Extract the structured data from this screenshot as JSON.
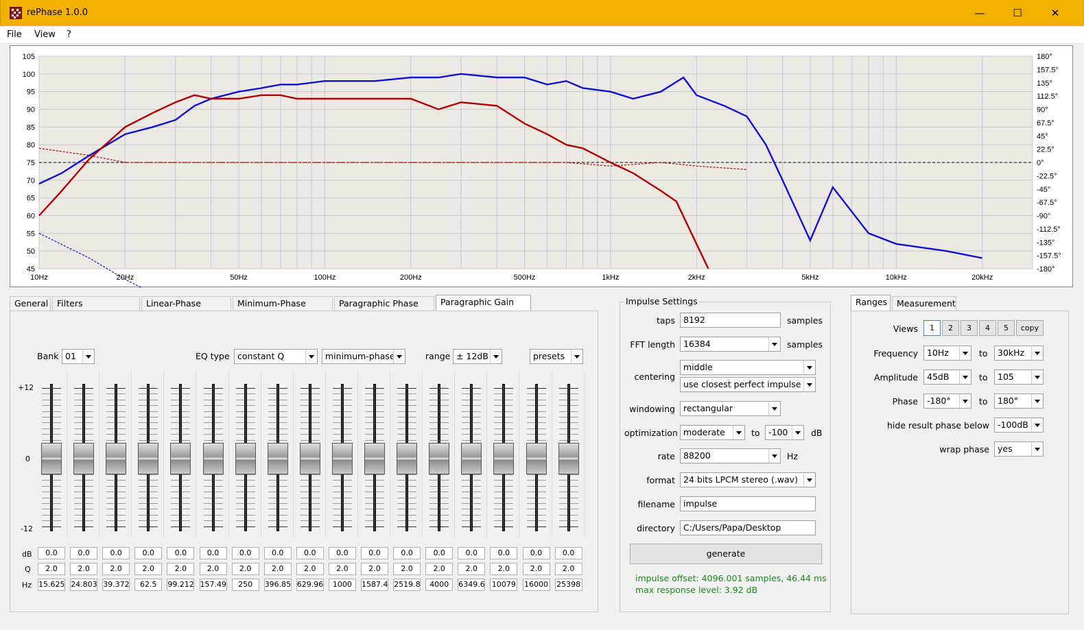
{
  "window": {
    "title": "rePhase 1.0.0",
    "minimize": "—",
    "maximize": "☐",
    "close": "✕"
  },
  "menu": [
    "File",
    "View",
    "?"
  ],
  "graph": {
    "left_axis_ticks": [
      "105",
      "100",
      "95",
      "90",
      "85",
      "80",
      "75",
      "70",
      "65",
      "60",
      "55",
      "50",
      "45"
    ],
    "right_axis_ticks": [
      "180°",
      "157.5°",
      "135°",
      "112.5°",
      "90°",
      "67.5°",
      "45°",
      "22.5°",
      "0°",
      "-22.5°",
      "-45°",
      "-67.5°",
      "-90°",
      "-112.5°",
      "-135°",
      "-157.5°",
      "-180°"
    ],
    "freq_ticks": [
      {
        "label": "10Hz",
        "f": 10
      },
      {
        "label": "20Hz",
        "f": 20
      },
      {
        "label": "50Hz",
        "f": 50
      },
      {
        "label": "100Hz",
        "f": 100
      },
      {
        "label": "200Hz",
        "f": 200
      },
      {
        "label": "500Hz",
        "f": 500
      },
      {
        "label": "1kHz",
        "f": 1000
      },
      {
        "label": "2kHz",
        "f": 2000
      },
      {
        "label": "5kHz",
        "f": 5000
      },
      {
        "label": "10kHz",
        "f": 10000
      },
      {
        "label": "20kHz",
        "f": 20000
      }
    ],
    "colors": {
      "blue": "#1010d0",
      "red": "#b00000",
      "grid": "#c8c8c8",
      "background": "#ece9e4"
    }
  },
  "chart_data": {
    "type": "line",
    "x_scale": "log",
    "xlim": [
      10,
      30000
    ],
    "ylim": [
      45,
      105
    ],
    "y2lim": [
      -180,
      180
    ],
    "grid": true,
    "series": [
      {
        "color": "#1010d0",
        "style": "solid",
        "x": [
          10,
          12,
          15,
          20,
          25,
          30,
          35,
          40,
          50,
          60,
          70,
          80,
          100,
          120,
          150,
          200,
          250,
          300,
          400,
          500,
          600,
          700,
          800,
          1000,
          1200,
          1500,
          1800,
          2000,
          2500,
          3000,
          3500,
          4000,
          5000,
          6000,
          8000,
          10000,
          15000,
          20000
        ],
        "y": [
          69,
          72,
          77,
          83,
          85,
          87,
          91,
          93,
          95,
          96,
          97,
          97,
          98,
          98,
          98,
          99,
          99,
          100,
          99,
          99,
          97,
          98,
          96,
          95,
          93,
          95,
          99,
          94,
          91,
          88,
          80,
          70,
          53,
          68,
          55,
          52,
          50,
          48
        ]
      },
      {
        "color": "#b00000",
        "style": "solid",
        "x": [
          10,
          12,
          15,
          20,
          25,
          30,
          35,
          40,
          50,
          60,
          70,
          80,
          100,
          120,
          150,
          200,
          250,
          300,
          400,
          500,
          600,
          700,
          800,
          1000,
          1200,
          1500,
          1700,
          2000,
          2200
        ],
        "y": [
          60,
          67,
          76,
          85,
          89,
          92,
          94,
          93,
          93,
          94,
          94,
          93,
          93,
          93,
          93,
          93,
          90,
          92,
          91,
          86,
          83,
          80,
          79,
          75,
          72,
          67,
          64,
          52,
          45
        ]
      },
      {
        "color": "#1010d0",
        "style": "dotted",
        "x": [
          10,
          15,
          20,
          25,
          30,
          35,
          40,
          50,
          70,
          100,
          150,
          200,
          300,
          400,
          500,
          600,
          800,
          1000,
          1500,
          2000,
          3000,
          4000
        ],
        "y": [
          55,
          48,
          42,
          38,
          35,
          33,
          32,
          31,
          30,
          29,
          28,
          28,
          27,
          25,
          24,
          24,
          23,
          22,
          20,
          18,
          16,
          10
        ]
      },
      {
        "color": "#b00000",
        "style": "dotted",
        "x": [
          10,
          15,
          20,
          30,
          50,
          100,
          150,
          200,
          300,
          500,
          700,
          1000,
          1500,
          2000,
          3000
        ],
        "y": [
          79,
          77,
          75,
          75,
          75,
          75,
          75,
          75,
          75,
          75,
          75,
          74,
          75,
          74,
          73
        ]
      }
    ]
  },
  "tabs": [
    "General",
    "Filters Linearization",
    "Linear-Phase Filters",
    "Minimum-Phase Filters",
    "Paragraphic Phase EQ",
    "Paragraphic Gain EQ"
  ],
  "eq": {
    "bank_label": "Bank",
    "bank": "01",
    "eq_type_label": "EQ type",
    "eq_type": "constant Q",
    "phase_type": "minimum-phase",
    "range_label": "range",
    "range": "± 12dB",
    "presets": "presets",
    "scale_top": "+12",
    "scale_mid": "0",
    "scale_bottom": "-12",
    "row_labels": [
      "dB",
      "Q",
      "Hz"
    ],
    "bands": [
      {
        "db": "0.0",
        "q": "2.0",
        "hz": "15.625"
      },
      {
        "db": "0.0",
        "q": "2.0",
        "hz": "24.803"
      },
      {
        "db": "0.0",
        "q": "2.0",
        "hz": "39.372"
      },
      {
        "db": "0.0",
        "q": "2.0",
        "hz": "62.5"
      },
      {
        "db": "0.0",
        "q": "2.0",
        "hz": "99.212"
      },
      {
        "db": "0.0",
        "q": "2.0",
        "hz": "157.49"
      },
      {
        "db": "0.0",
        "q": "2.0",
        "hz": "250"
      },
      {
        "db": "0.0",
        "q": "2.0",
        "hz": "396.85"
      },
      {
        "db": "0.0",
        "q": "2.0",
        "hz": "629.96"
      },
      {
        "db": "0.0",
        "q": "2.0",
        "hz": "1000"
      },
      {
        "db": "0.0",
        "q": "2.0",
        "hz": "1587.4"
      },
      {
        "db": "0.0",
        "q": "2.0",
        "hz": "2519.8"
      },
      {
        "db": "0.0",
        "q": "2.0",
        "hz": "4000"
      },
      {
        "db": "0.0",
        "q": "2.0",
        "hz": "6349.6"
      },
      {
        "db": "0.0",
        "q": "2.0",
        "hz": "10079"
      },
      {
        "db": "0.0",
        "q": "2.0",
        "hz": "16000"
      },
      {
        "db": "0.0",
        "q": "2.0",
        "hz": "25398"
      }
    ]
  },
  "impulse": {
    "group_title": "Impulse Settings",
    "taps_label": "taps",
    "taps": "8192",
    "samples": "samples",
    "fft_label": "FFT length",
    "fft": "16384",
    "centering_label": "centering",
    "centering": "middle",
    "centering2": "use closest perfect impulse",
    "windowing_label": "windowing",
    "windowing": "rectangular",
    "optimization_label": "optimization",
    "optimization": "moderate",
    "to": "to",
    "opt_db": "-100",
    "db": "dB",
    "rate_label": "rate",
    "rate": "88200",
    "hz": "Hz",
    "format_label": "format",
    "format": "24 bits LPCM stereo (.wav)",
    "filename_label": "filename",
    "filename": "impulse",
    "directory_label": "directory",
    "directory": "C:/Users/Papa/Desktop",
    "generate": "generate",
    "status1": "impulse offset: 4096.001 samples, 46.44 ms",
    "status2": "max response level: 3.92 dB"
  },
  "ranges": {
    "tabs": [
      "Ranges",
      "Measurement"
    ],
    "views_label": "Views",
    "views": [
      "1",
      "2",
      "3",
      "4",
      "5",
      "copy"
    ],
    "frequency_label": "Frequency",
    "freq_from": "10Hz",
    "freq_to": "30kHz",
    "amplitude_label": "Amplitude",
    "amp_from": "45dB",
    "amp_to": "105",
    "phase_label": "Phase",
    "phase_from": "-180°",
    "phase_to": "180°",
    "to": "to",
    "hide_label": "hide result phase below",
    "hide": "-100dB",
    "wrap_label": "wrap phase",
    "wrap": "yes"
  }
}
